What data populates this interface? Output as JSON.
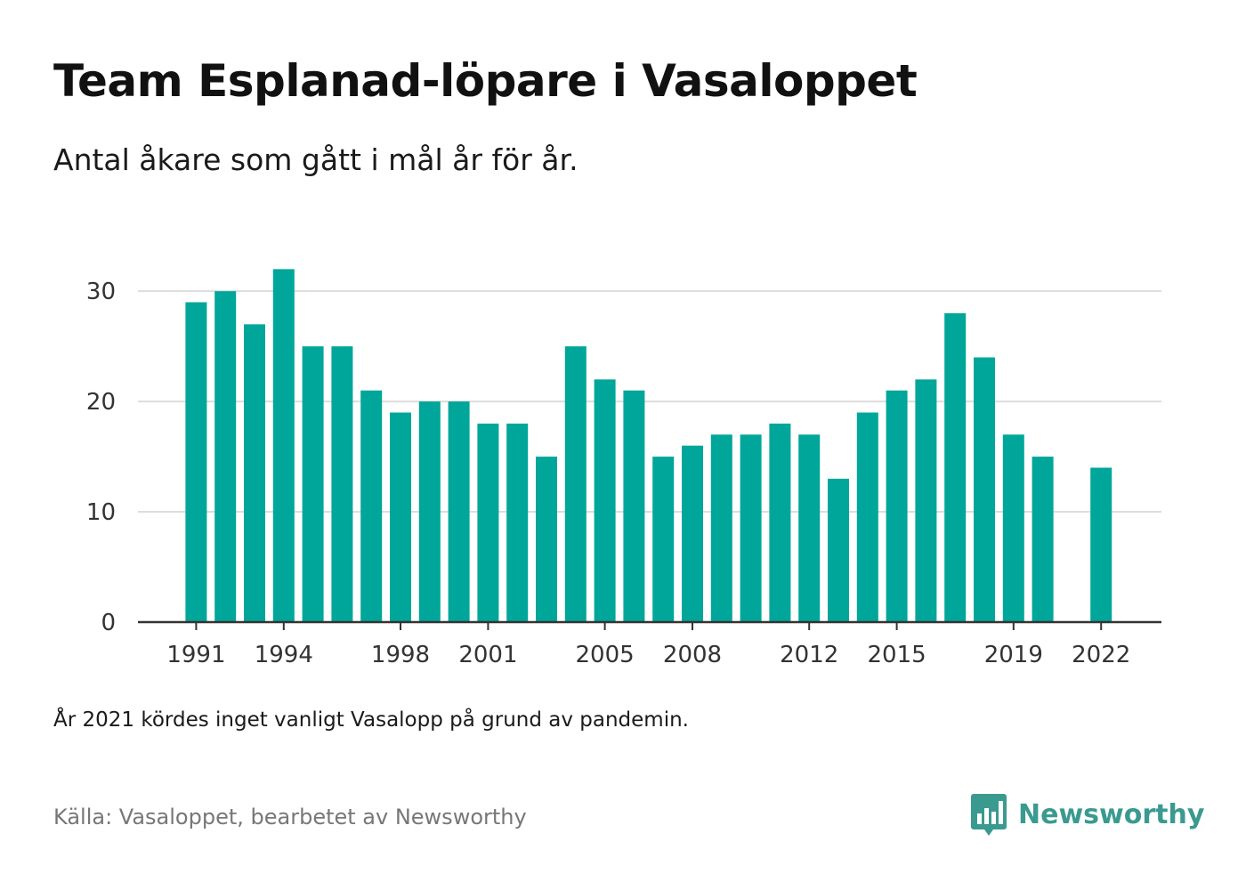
{
  "title": "Team Esplanad-löpare i Vasaloppet",
  "subtitle": "Antal åkare som gått i mål år för år.",
  "note": "År 2021 kördes inget vanligt Vasalopp på grund av pandemin.",
  "source": "Källa: Vasaloppet, bearbetet av Newsworthy",
  "brand": {
    "name": "Newsworthy",
    "logo_icon": "bar-chart-speech-bubble-icon"
  },
  "colors": {
    "bar": "#00a69a",
    "grid": "#dddddd",
    "axis": "#333333",
    "brand": "#3a9a90"
  },
  "chart_data": {
    "type": "bar",
    "title": "Team Esplanad-löpare i Vasaloppet",
    "subtitle": "Antal åkare som gått i mål år för år.",
    "xlabel": "",
    "ylabel": "",
    "categories": [
      1991,
      1992,
      1993,
      1994,
      1995,
      1996,
      1997,
      1998,
      1999,
      2000,
      2001,
      2002,
      2003,
      2004,
      2005,
      2006,
      2007,
      2008,
      2009,
      2010,
      2011,
      2012,
      2013,
      2014,
      2015,
      2016,
      2017,
      2018,
      2019,
      2020,
      2021,
      2022
    ],
    "values": [
      29,
      30,
      27,
      32,
      25,
      25,
      21,
      19,
      20,
      20,
      18,
      18,
      15,
      25,
      22,
      21,
      15,
      16,
      17,
      17,
      18,
      17,
      13,
      19,
      21,
      22,
      28,
      24,
      17,
      15,
      null,
      14
    ],
    "x_tick_labels": [
      "1991",
      "1994",
      "1998",
      "2001",
      "2005",
      "2008",
      "2012",
      "2015",
      "2019",
      "2022"
    ],
    "y_ticks": [
      0,
      10,
      20,
      30
    ],
    "ylim": [
      0,
      33
    ],
    "grid": "horizontal",
    "legend": "none"
  }
}
